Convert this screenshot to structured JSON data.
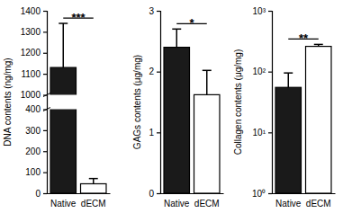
{
  "chart_data": [
    {
      "type": "bar",
      "ylabel": "DNA contents (ng/mg)",
      "categories": [
        "Native",
        "dECM"
      ],
      "values": [
        1130,
        45
      ],
      "errors": [
        210,
        25
      ],
      "colors": [
        "#1a1a1a",
        "#ffffff"
      ],
      "ylim": [
        0,
        1400
      ],
      "yticks": [
        0,
        100,
        200,
        300,
        400,
        1000,
        1100,
        1200,
        1300,
        1400
      ],
      "annotations": [
        "***"
      ]
    },
    {
      "type": "bar",
      "ylabel": "GAGs contents (μg/mg)",
      "categories": [
        "Native",
        "dECM"
      ],
      "values": [
        2.4,
        1.62
      ],
      "errors": [
        0.3,
        0.4
      ],
      "colors": [
        "#1a1a1a",
        "#ffffff"
      ],
      "ylim": [
        0,
        3
      ],
      "yticks": [
        0,
        1,
        2,
        3
      ],
      "annotations": [
        "*"
      ]
    },
    {
      "type": "bar",
      "ylabel": "Collagen contents (μg/mg)",
      "categories": [
        "Native",
        "dECM"
      ],
      "values": [
        55,
        260
      ],
      "errors": [
        40,
        20
      ],
      "colors": [
        "#1a1a1a",
        "#ffffff"
      ],
      "ylim": [
        1,
        1000
      ],
      "log": "y",
      "yticks": [
        {
          "value": 1,
          "label": "10⁰"
        },
        {
          "value": 10,
          "label": "10¹"
        },
        {
          "value": 100,
          "label": "10²"
        },
        {
          "value": 1000,
          "label": "10³"
        }
      ],
      "annotations": [
        "**"
      ]
    }
  ]
}
